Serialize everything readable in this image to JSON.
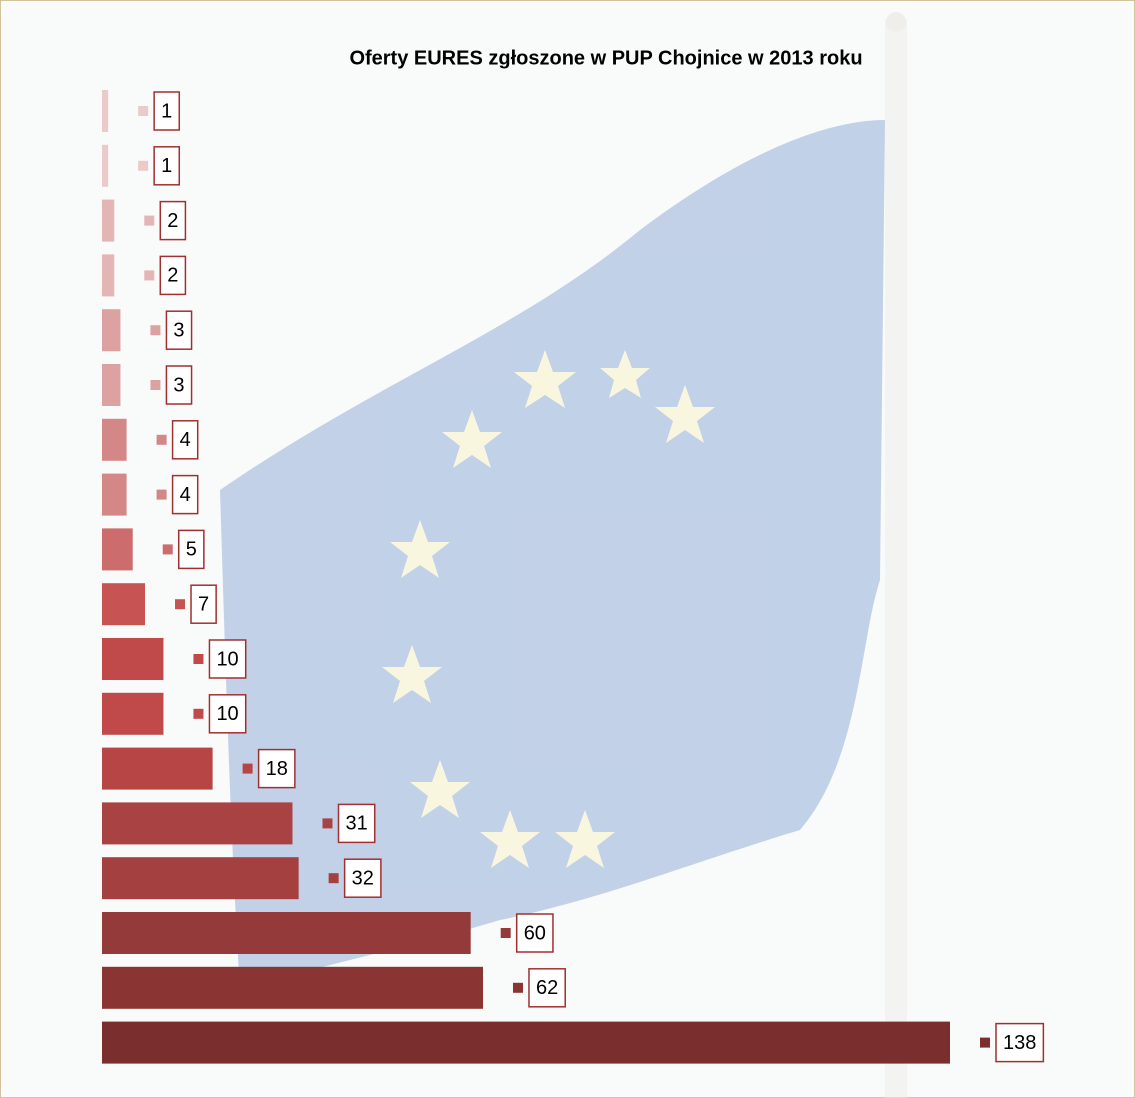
{
  "chart_data": {
    "type": "bar",
    "orientation": "horizontal",
    "title": "Oferty EURES zgłoszone w PUP Chojnice w 2013 roku",
    "categories": [
      null,
      null,
      null,
      null,
      null,
      null,
      null,
      null,
      null,
      null,
      null,
      null,
      null,
      null,
      null,
      null,
      null,
      null
    ],
    "values": [
      1,
      1,
      2,
      2,
      3,
      3,
      4,
      4,
      5,
      7,
      10,
      10,
      18,
      31,
      32,
      60,
      62,
      138
    ],
    "colors": [
      "#ebcaca",
      "#ebcaca",
      "#e4b5b5",
      "#e4b5b5",
      "#dca2a2",
      "#dca2a2",
      "#d48787",
      "#d48787",
      "#cd6c6c",
      "#c85353",
      "#c04949",
      "#c04949",
      "#b84545",
      "#a94242",
      "#a54040",
      "#943a3a",
      "#8a3434",
      "#7a2e2e"
    ]
  }
}
